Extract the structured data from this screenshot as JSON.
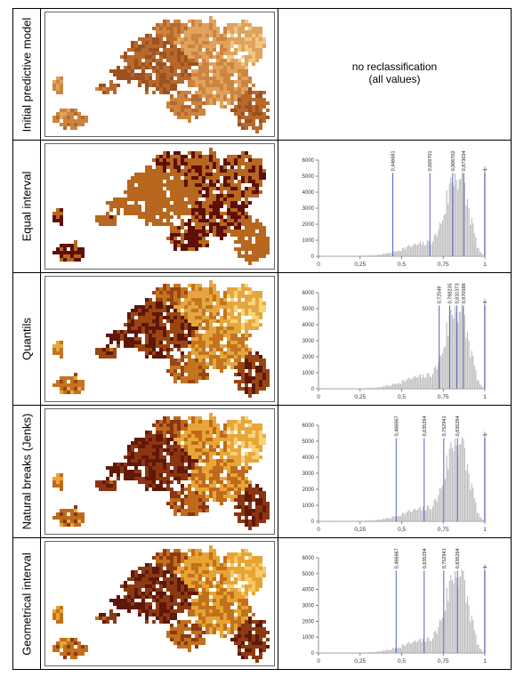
{
  "rows": [
    {
      "label": "Initial predictive model",
      "text_lines": [
        "no reclassification",
        "(all values)"
      ]
    },
    {
      "label": "Equal interval",
      "breaks": [
        "0,446681",
        "0,669701",
        "0,806702",
        "0,873034",
        "1"
      ]
    },
    {
      "label": "Quantils",
      "breaks": [
        "0,72549",
        "0,788235",
        "0,831373",
        "0,870588",
        "1"
      ]
    },
    {
      "label": "Natural breaks (Jenks)",
      "breaks": [
        "0,466667",
        "0,635294",
        "0,752941",
        "0,835294",
        "1"
      ]
    },
    {
      "label": "Geometrical interval",
      "breaks": [
        "0,466667",
        "0,635294",
        "0,752941",
        "0,835294",
        "1"
      ]
    }
  ],
  "chart_data": [
    {
      "type": "bar",
      "title": "Equal interval",
      "x_ticks": [
        "0",
        "0,25",
        "0,5",
        "0,75",
        "1"
      ],
      "y_ticks": [
        "0",
        "1000",
        "2000",
        "3000",
        "4000",
        "5000",
        "6000"
      ],
      "xlim": [
        0,
        1
      ],
      "ylim": [
        0,
        6000
      ],
      "break_values": [
        0.446681,
        0.669701,
        0.806702,
        0.873034,
        1.0
      ],
      "break_labels": [
        "0,446681",
        "0,669701",
        "0,806702",
        "0,873034",
        "1"
      ]
    },
    {
      "type": "bar",
      "title": "Quantils",
      "x_ticks": [
        "0",
        "0,25",
        "0,5",
        "0,75",
        "1"
      ],
      "y_ticks": [
        "0",
        "1000",
        "2000",
        "3000",
        "4000",
        "5000",
        "6000"
      ],
      "xlim": [
        0,
        1
      ],
      "ylim": [
        0,
        6000
      ],
      "break_values": [
        0.72549,
        0.788235,
        0.831373,
        0.870588,
        1.0
      ],
      "break_labels": [
        "0,72549",
        "0,788235",
        "0,831373",
        "0,870588",
        "1"
      ]
    },
    {
      "type": "bar",
      "title": "Natural breaks (Jenks)",
      "x_ticks": [
        "0",
        "0,25",
        "0,5",
        "0,75",
        "1"
      ],
      "y_ticks": [
        "0",
        "1000",
        "2000",
        "3000",
        "4000",
        "5000",
        "6000"
      ],
      "xlim": [
        0,
        1
      ],
      "ylim": [
        0,
        6000
      ],
      "break_values": [
        0.466667,
        0.635294,
        0.752941,
        0.835294,
        1.0
      ],
      "break_labels": [
        "0,466667",
        "0,635294",
        "0,752941",
        "0,835294",
        "1"
      ]
    },
    {
      "type": "bar",
      "title": "Geometrical interval",
      "x_ticks": [
        "0",
        "0,25",
        "0,5",
        "0,75",
        "1"
      ],
      "y_ticks": [
        "0",
        "1000",
        "2000",
        "3000",
        "4000",
        "5000",
        "6000"
      ],
      "xlim": [
        0,
        1
      ],
      "ylim": [
        0,
        6000
      ],
      "break_values": [
        0.466667,
        0.635294,
        0.752941,
        0.835294,
        1.0
      ],
      "break_labels": [
        "0,466667",
        "0,635294",
        "0,752941",
        "0,835294",
        "1"
      ]
    }
  ],
  "map_palettes": [
    [
      "#f0c684",
      "#e0a25c",
      "#cd8440",
      "#b7692c",
      "#9c5220"
    ],
    [
      "#5e0f07",
      "#b7671e",
      "#5e0f07",
      "#b7671e",
      "#b7671e"
    ],
    [
      "#fbd473",
      "#e4a740",
      "#c4741e",
      "#9b4612",
      "#5e1708"
    ],
    [
      "#fbd07a",
      "#e9a638",
      "#bf6a1a",
      "#8b3512",
      "#621808"
    ],
    [
      "#f8c768",
      "#e7a432",
      "#c2701c",
      "#8b3a12",
      "#5e1708"
    ]
  ]
}
